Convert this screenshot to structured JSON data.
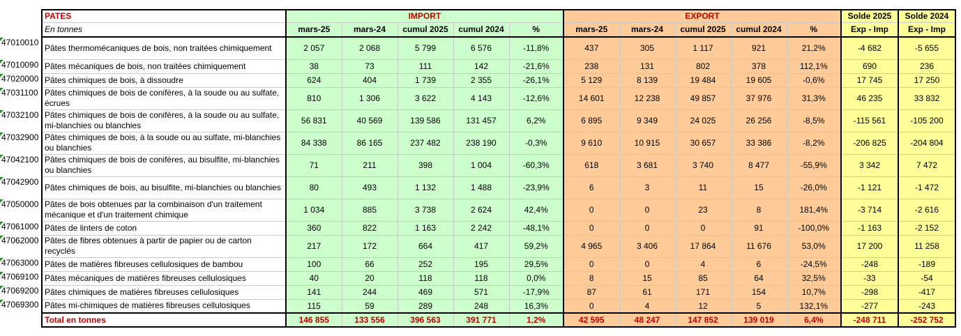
{
  "header": {
    "title": "PATES",
    "unit": "En tonnes",
    "import_group": "IMPORT",
    "export_group": "EXPORT",
    "solde_2025": "Solde 2025",
    "solde_2024": "Solde 2024",
    "columns": [
      "mars-25",
      "mars-24",
      "cumul 2025",
      "cumul 2024",
      "%"
    ],
    "solde_sub": "Exp - Imp"
  },
  "rows": [
    {
      "code": "47010010",
      "label": "Pâtes thermomécaniques de bois, non traitées chimiquement",
      "imp": [
        "2 057",
        "2 068",
        "5 799",
        "6 576",
        "-11,8%"
      ],
      "exp": [
        "437",
        "305",
        "1 117",
        "921",
        "21,2%"
      ],
      "solde": [
        "-4 682",
        "-5 655"
      ]
    },
    {
      "code": "47010090",
      "label": "Pâtes mécaniques de bois, non traitées chimiquement",
      "imp": [
        "38",
        "73",
        "111",
        "142",
        "-21,6%"
      ],
      "exp": [
        "238",
        "131",
        "802",
        "378",
        "112,1%"
      ],
      "solde": [
        "690",
        "236"
      ]
    },
    {
      "code": "47020000",
      "label": "Pâtes chimiques de bois, à dissoudre",
      "imp": [
        "624",
        "404",
        "1 739",
        "2 355",
        "-26,1%"
      ],
      "exp": [
        "5 129",
        "8 139",
        "19 484",
        "19 605",
        "-0,6%"
      ],
      "solde": [
        "17 745",
        "17 250"
      ]
    },
    {
      "code": "47031100",
      "label": "Pâtes chimiques de bois de conifères, à la soude ou au sulfate, écrues",
      "imp": [
        "810",
        "1 306",
        "3 622",
        "4 143",
        "-12,6%"
      ],
      "exp": [
        "14 601",
        "12 238",
        "49 857",
        "37 976",
        "31,3%"
      ],
      "solde": [
        "46 235",
        "33 832"
      ]
    },
    {
      "code": "47032100",
      "label": "Pâtes chimiques de bois de conifères, à la soude ou au sulfate, mi-blanchies ou blanchies",
      "imp": [
        "56 831",
        "40 569",
        "139 586",
        "131 457",
        "6,2%"
      ],
      "exp": [
        "6 895",
        "9 349",
        "24 025",
        "26 256",
        "-8,5%"
      ],
      "solde": [
        "-115 561",
        "-105 200"
      ]
    },
    {
      "code": "47032900",
      "label": "Pâtes chimiques de bois, à la soude ou au sulfate, mi-blanchies ou blanchies",
      "imp": [
        "84 338",
        "86 165",
        "237 482",
        "238 190",
        "-0,3%"
      ],
      "exp": [
        "9 610",
        "10 915",
        "30 657",
        "33 386",
        "-8,2%"
      ],
      "solde": [
        "-206 825",
        "-204 804"
      ]
    },
    {
      "code": "47042100",
      "label": "Pâtes chimiques de bois de conifères, au bisulfite, mi-blanchies ou blanchies",
      "imp": [
        "71",
        "211",
        "398",
        "1 004",
        "-60,3%"
      ],
      "exp": [
        "618",
        "3 681",
        "3 740",
        "8 477",
        "-55,9%"
      ],
      "solde": [
        "3 342",
        "7 472"
      ]
    },
    {
      "code": "47042900",
      "label": "Pâtes chimiques de bois, au bisulfite, mi-blanchies ou blanchies",
      "imp": [
        "80",
        "493",
        "1 132",
        "1 488",
        "-23,9%"
      ],
      "exp": [
        "6",
        "3",
        "11",
        "15",
        "-26,0%"
      ],
      "solde": [
        "-1 121",
        "-1 472"
      ]
    },
    {
      "code": "47050000",
      "label": "Pâtes de bois obtenues par la combinaison d'un traitement mécanique et d'un traitement chimique",
      "imp": [
        "1 034",
        "885",
        "3 738",
        "2 624",
        "42,4%"
      ],
      "exp": [
        "0",
        "0",
        "23",
        "8",
        "181,4%"
      ],
      "solde": [
        "-3 714",
        "-2 616"
      ]
    },
    {
      "code": "47061000",
      "label": "Pâtes de linters de coton",
      "imp": [
        "360",
        "822",
        "1 163",
        "2 242",
        "-48,1%"
      ],
      "exp": [
        "0",
        "0",
        "0",
        "91",
        "-100,0%"
      ],
      "solde": [
        "-1 163",
        "-2 152"
      ]
    },
    {
      "code": "47062000",
      "label": "Pâtes de fibres obtenues à partir de papier ou de carton recyclés",
      "imp": [
        "217",
        "172",
        "664",
        "417",
        "59,2%"
      ],
      "exp": [
        "4 965",
        "3 406",
        "17 864",
        "11 676",
        "53,0%"
      ],
      "solde": [
        "17 200",
        "11 258"
      ]
    },
    {
      "code": "47063000",
      "label": "Pâtes de matières fibreuses cellulosiques de bambou",
      "imp": [
        "100",
        "66",
        "252",
        "195",
        "29,5%"
      ],
      "exp": [
        "0",
        "0",
        "4",
        "6",
        "-24,5%"
      ],
      "solde": [
        "-248",
        "-189"
      ]
    },
    {
      "code": "47069100",
      "label": "Pâtes mécaniques de matières fibreuses cellulosiques",
      "imp": [
        "40",
        "20",
        "118",
        "118",
        "0,0%"
      ],
      "exp": [
        "8",
        "15",
        "85",
        "64",
        "32,5%"
      ],
      "solde": [
        "-33",
        "-54"
      ]
    },
    {
      "code": "47069200",
      "label": "Pâtes chimiques de matières fibreuses cellulosiques",
      "imp": [
        "141",
        "244",
        "469",
        "571",
        "-17,9%"
      ],
      "exp": [
        "87",
        "61",
        "171",
        "154",
        "10,7%"
      ],
      "solde": [
        "-298",
        "-417"
      ]
    },
    {
      "code": "47069300",
      "label": "Pâtes mi-chimiques de matières fibreuses cellulosiques",
      "imp": [
        "115",
        "59",
        "289",
        "248",
        "16,3%"
      ],
      "exp": [
        "0",
        "4",
        "12",
        "5",
        "132,1%"
      ],
      "solde": [
        "-277",
        "-243"
      ]
    }
  ],
  "total": {
    "label": "Total en tonnes",
    "imp": [
      "146 855",
      "133 556",
      "396 563",
      "391 771",
      "1,2%"
    ],
    "exp": [
      "42 595",
      "48 247",
      "147 852",
      "139 019",
      "6,4%"
    ],
    "solde": [
      "-248 711",
      "-252 752"
    ]
  },
  "colors": {
    "import": "#ccffcc",
    "export": "#ffcc99",
    "solde": "#ffff99",
    "accent_red": "#c00000"
  }
}
